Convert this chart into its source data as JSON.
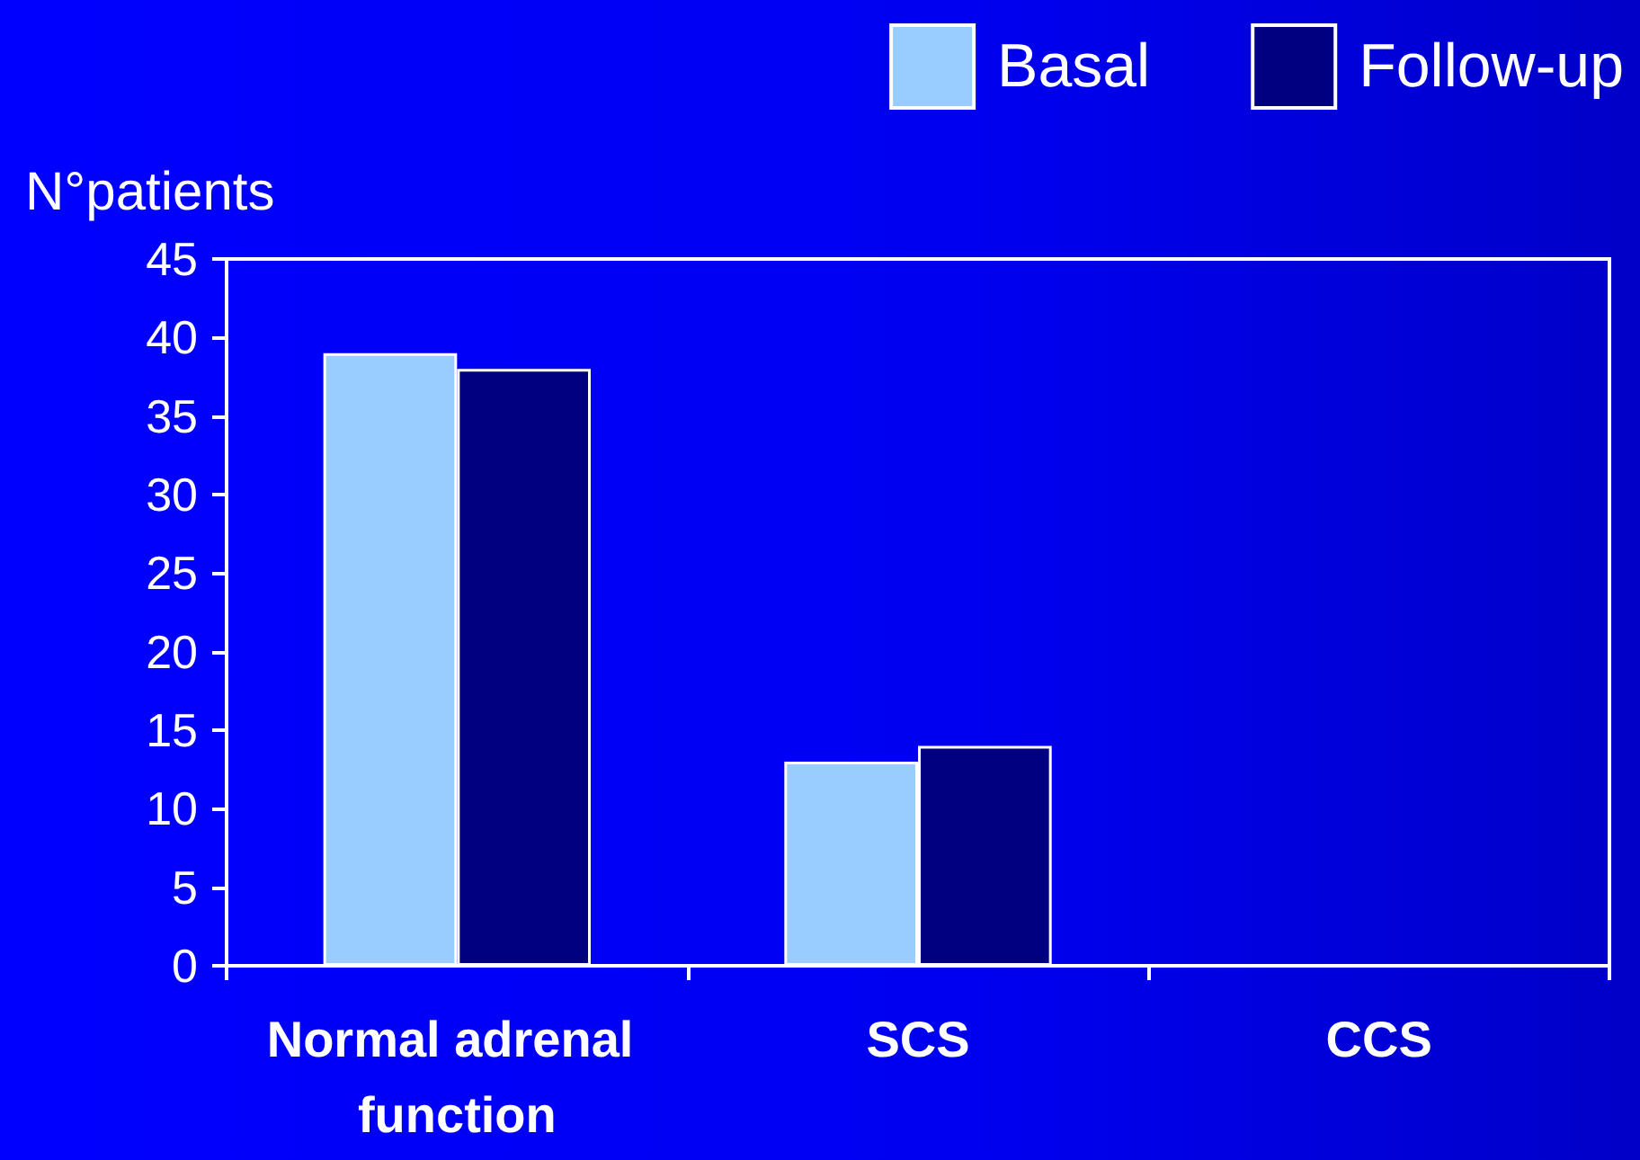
{
  "chart_data": {
    "type": "bar",
    "ylabel": "N°patients",
    "categories": [
      "Normal adrenal function",
      "SCS",
      "CCS"
    ],
    "series": [
      {
        "name": "Basal",
        "color": "#99ccff",
        "values": [
          39,
          13,
          0
        ]
      },
      {
        "name": "Follow-up",
        "color": "#000080",
        "values": [
          38,
          14,
          0
        ]
      }
    ],
    "ylim": [
      0,
      45
    ],
    "yticks": [
      0,
      5,
      10,
      15,
      20,
      25,
      30,
      35,
      40,
      45
    ],
    "grid": false,
    "legend": "top right"
  }
}
